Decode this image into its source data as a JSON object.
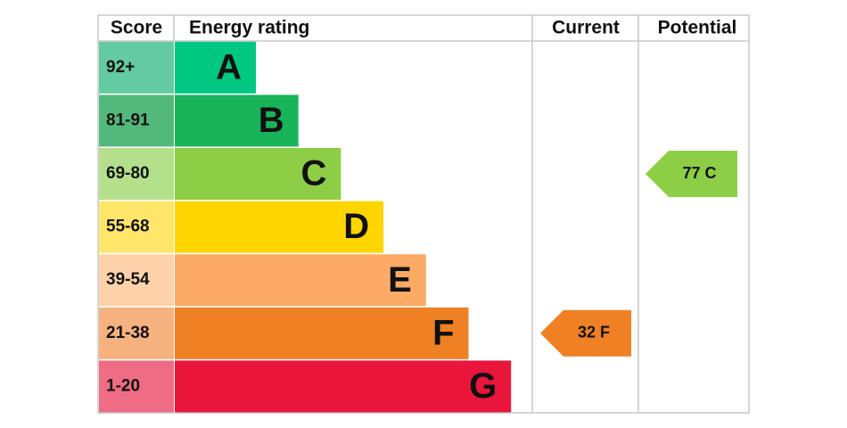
{
  "chart_data": {
    "type": "epc",
    "headers": {
      "score": "Score",
      "rating": "Energy rating",
      "current": "Current",
      "potential": "Potential"
    },
    "bands": [
      {
        "letter": "A",
        "score_label": "92+",
        "min": 92,
        "max": null,
        "color": "#00c781",
        "score_color": "#63caa3"
      },
      {
        "letter": "B",
        "score_label": "81-91",
        "min": 81,
        "max": 91,
        "color": "#19b459",
        "score_color": "#53b97b"
      },
      {
        "letter": "C",
        "score_label": "69-80",
        "min": 69,
        "max": 80,
        "color": "#8dce46",
        "score_color": "#b4df8b"
      },
      {
        "letter": "D",
        "score_label": "55-68",
        "min": 55,
        "max": 68,
        "color": "#ffd500",
        "score_color": "#ffe66a"
      },
      {
        "letter": "E",
        "score_label": "39-54",
        "min": 39,
        "max": 54,
        "color": "#fcaa65",
        "score_color": "#fdd1a9"
      },
      {
        "letter": "F",
        "score_label": "21-38",
        "min": 21,
        "max": 38,
        "color": "#ef8023",
        "score_color": "#f5b27e"
      },
      {
        "letter": "G",
        "score_label": "1-20",
        "min": 1,
        "max": 20,
        "color": "#e9153b",
        "score_color": "#ee6c84"
      }
    ],
    "current": {
      "value": 32,
      "label": "32 F"
    },
    "potential": {
      "value": 77,
      "label": "77 C"
    }
  }
}
